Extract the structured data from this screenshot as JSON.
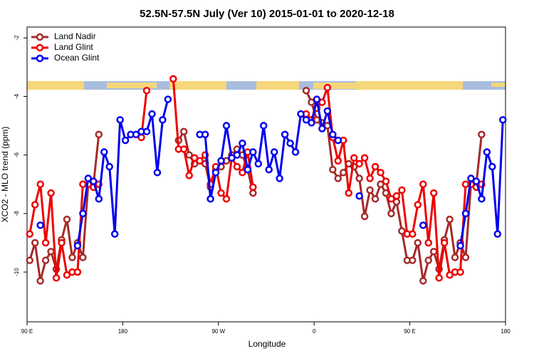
{
  "chart_data": {
    "type": "line",
    "title": "52.5N-57.5N July (Ver 10)   2015-01-01 to 2020-12-18",
    "x_label": "Longitude",
    "y_label": "XCO2 - MLO trend (ppm)",
    "xlim": [
      90,
      540
    ],
    "ylim": [
      -11.7,
      -1.63
    ],
    "xticks": [
      {
        "value": 90,
        "label": "90 E"
      },
      180,
      {
        "value": 270,
        "label": "90 W"
      },
      {
        "value": 360,
        "label": "0"
      },
      {
        "value": 450,
        "label": "90 E"
      },
      {
        "value": 540,
        "label": "180"
      }
    ],
    "yticks": [
      -10,
      -8,
      -6,
      -4,
      -2
    ],
    "legend": "top-left",
    "x": [
      92.5,
      97.5,
      102.5,
      107.5,
      112.5,
      117.5,
      122.5,
      127.5,
      132.5,
      137.5,
      142.5,
      147.5,
      152.5,
      157.5,
      162.5,
      167.5,
      172.5,
      177.5,
      182.5,
      187.5,
      192.5,
      197.5,
      202.5,
      207.5,
      212.5,
      217.5,
      222.5,
      227.5,
      232.5,
      237.5,
      242.5,
      247.5,
      252.5,
      257.5,
      262.5,
      267.5,
      272.5,
      277.5,
      282.5,
      287.5,
      292.5,
      297.5,
      302.5,
      307.5,
      312.5,
      317.5,
      322.5,
      327.5,
      332.5,
      337.5,
      342.5,
      347.5,
      352.5,
      357.5,
      362.5,
      367.5,
      372.5,
      377.5,
      382.5,
      387.5,
      392.5,
      397.5,
      402.5,
      407.5,
      412.5,
      417.5,
      422.5,
      427.5,
      432.5,
      437.5,
      442.5,
      447.5,
      452.5,
      457.5,
      462.5,
      467.5,
      472.5,
      477.5,
      482.5,
      487.5,
      492.5,
      497.5,
      502.5,
      507.5,
      512.5,
      517.5,
      522.5,
      527.5,
      532.5,
      537.5
    ],
    "series": [
      {
        "name": "Land Nadir",
        "color": "#a52a2a",
        "values": [
          -9.6,
          -9.0,
          -10.3,
          -9.6,
          -9.3,
          -9.9,
          -8.9,
          -8.2,
          -9.5,
          -9.0,
          -9.5,
          -7.0,
          -7.0,
          -5.3,
          null,
          null,
          null,
          null,
          null,
          null,
          null,
          null,
          null,
          null,
          null,
          null,
          null,
          null,
          -5.5,
          -5.2,
          -6.0,
          -6.3,
          -6.2,
          -6.3,
          -7.1,
          -6.5,
          -6.4,
          -6.2,
          -6.0,
          -5.8,
          -6.0,
          -6.5,
          -7.3,
          null,
          null,
          null,
          null,
          null,
          null,
          null,
          null,
          null,
          -3.8,
          -4.2,
          -4.8,
          -4.9,
          -5.0,
          -6.5,
          -6.8,
          -6.6,
          -6.3,
          -6.4,
          -6.8,
          -8.1,
          -7.2,
          -7.5,
          -7.0,
          -7.3,
          -8.0,
          -7.6,
          -8.6,
          -9.6,
          -9.6,
          -9.0,
          -10.3,
          -9.6,
          -9.3,
          -9.9,
          -8.9,
          -8.2,
          -9.5,
          -9.0,
          -9.5,
          -7.0,
          -7.0,
          -5.3,
          null,
          null,
          null,
          null
        ]
      },
      {
        "name": "Land Glint",
        "color": "#ee0000",
        "values": [
          -8.7,
          -7.7,
          -7.0,
          -9.0,
          -7.3,
          -10.2,
          -9.0,
          -10.1,
          -10.0,
          -10.0,
          -7.0,
          -7.0,
          -7.1,
          -7.0,
          null,
          null,
          null,
          null,
          null,
          null,
          null,
          -5.4,
          -3.8,
          null,
          null,
          null,
          null,
          -3.4,
          -5.8,
          -5.8,
          -6.7,
          -6.1,
          -6.2,
          -6.0,
          -7.0,
          -6.4,
          -7.3,
          -7.5,
          -6.1,
          -6.4,
          -6.6,
          -5.9,
          -7.1,
          null,
          null,
          null,
          null,
          null,
          null,
          null,
          null,
          -4.6,
          -4.6,
          -4.8,
          -4.4,
          -4.2,
          -3.7,
          -5.4,
          -6.2,
          -5.5,
          -7.3,
          -6.1,
          -6.3,
          -6.1,
          -6.8,
          -6.4,
          -6.6,
          -6.9,
          -7.5,
          -7.4,
          -7.2,
          -8.7,
          -8.7,
          -7.7,
          -7.0,
          -9.0,
          -7.3,
          -10.2,
          -9.0,
          -10.1,
          -10.0,
          -10.0,
          -7.0,
          -7.0,
          -7.1,
          -7.0,
          null,
          null,
          null,
          null
        ]
      },
      {
        "name": "Ocean Glint",
        "color": "#0000ee",
        "values": [
          null,
          null,
          -8.4,
          null,
          null,
          null,
          null,
          null,
          null,
          -9.1,
          -8.0,
          -6.8,
          -6.9,
          -7.5,
          -5.9,
          -6.4,
          -8.7,
          -4.8,
          -5.5,
          -5.3,
          -5.3,
          -5.2,
          -5.2,
          -4.6,
          -6.6,
          -4.8,
          -4.1,
          null,
          null,
          null,
          null,
          null,
          -5.3,
          -5.3,
          -7.5,
          -6.6,
          -6.2,
          -5.0,
          -6.1,
          -6.0,
          -5.6,
          -6.5,
          -5.9,
          -6.3,
          -5.0,
          -6.5,
          -5.9,
          -6.8,
          -5.3,
          -5.6,
          -5.9,
          -4.6,
          -4.8,
          -4.9,
          -4.1,
          -5.1,
          -4.5,
          -5.3,
          -5.5,
          null,
          null,
          null,
          -7.4,
          null,
          null,
          null,
          null,
          null,
          null,
          null,
          null,
          null,
          null,
          null,
          -8.4,
          null,
          null,
          null,
          null,
          null,
          null,
          -9.1,
          -8.0,
          -6.8,
          -6.9,
          -7.5,
          -5.9,
          -6.4,
          -8.7,
          -4.8
        ]
      }
    ]
  }
}
